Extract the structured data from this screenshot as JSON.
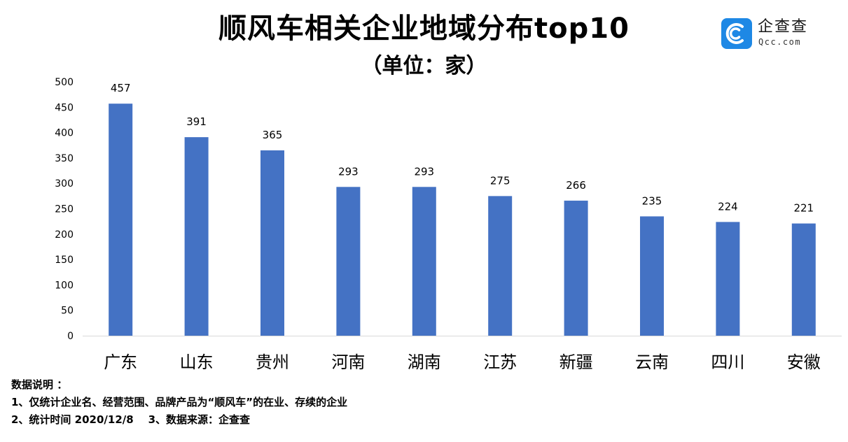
{
  "header": {
    "title": "顺风车相关企业地域分布top10",
    "subtitle": "（单位：家）"
  },
  "logo": {
    "name": "企查查",
    "url": "Qcc.com",
    "icon": "qcc-logo-icon",
    "color": "#1e88e5"
  },
  "notes": {
    "heading": "数据说明 ：",
    "line1": "1、仅统计企业名、经营范围、品牌产品为“顺风车”的在业、存续的企业",
    "line2": "2、统计时间 2020/12/8    3、数据来源：企查查"
  },
  "chart_data": {
    "type": "bar",
    "categories": [
      "广东",
      "山东",
      "贵州",
      "河南",
      "湖南",
      "江苏",
      "新疆",
      "云南",
      "四川",
      "安徽"
    ],
    "values": [
      457,
      391,
      365,
      293,
      293,
      275,
      266,
      235,
      224,
      221
    ],
    "title": "顺风车相关企业地域分布top10",
    "subtitle": "（单位：家）",
    "xlabel": "",
    "ylabel": "",
    "ylim": [
      0,
      500
    ],
    "yticks": [
      0,
      50,
      100,
      150,
      200,
      250,
      300,
      350,
      400,
      450,
      500
    ],
    "grid": false,
    "legend": "none",
    "bar_color": "#4472c4"
  }
}
